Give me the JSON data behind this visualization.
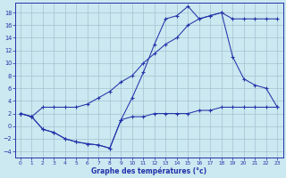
{
  "xlabel": "Graphe des températures (°c)",
  "background_color": "#cce8f0",
  "line_color": "#2233aa",
  "grid_color": "#99bbcc",
  "xlim": [
    -0.5,
    23.5
  ],
  "ylim": [
    -5,
    19.5
  ],
  "xticks": [
    0,
    1,
    2,
    3,
    4,
    5,
    6,
    7,
    8,
    9,
    10,
    11,
    12,
    13,
    14,
    15,
    16,
    17,
    18,
    19,
    20,
    21,
    22,
    23
  ],
  "yticks": [
    -4,
    -2,
    0,
    2,
    4,
    6,
    8,
    10,
    12,
    14,
    16,
    18
  ],
  "line1_x": [
    0,
    1,
    2,
    3,
    4,
    5,
    6,
    7,
    8,
    9,
    10,
    11,
    12,
    13,
    14,
    15,
    16,
    17,
    18,
    19,
    20,
    21,
    22,
    23
  ],
  "line1_y": [
    2,
    1.5,
    -0.5,
    -1.0,
    -2.0,
    -2.5,
    -2.8,
    -3.0,
    -3.5,
    1.0,
    4.5,
    8.5,
    13.0,
    17.0,
    17.5,
    19.0,
    17.0,
    17.5,
    18.0,
    17.0,
    17.0,
    17.0,
    17.0,
    17.0
  ],
  "line2_x": [
    0,
    1,
    2,
    3,
    4,
    5,
    6,
    7,
    8,
    9,
    10,
    11,
    12,
    13,
    14,
    15,
    16,
    17,
    18,
    19,
    20,
    21,
    22,
    23
  ],
  "line2_y": [
    2,
    1.5,
    3.0,
    3.0,
    3.0,
    3.0,
    3.5,
    4.5,
    5.5,
    7.0,
    8.0,
    10.0,
    11.5,
    13.0,
    14.0,
    16.0,
    17.0,
    17.5,
    18.0,
    11.0,
    7.5,
    6.5,
    6.0,
    3.0
  ],
  "line3_x": [
    0,
    1,
    2,
    3,
    4,
    5,
    6,
    7,
    8,
    9,
    10,
    11,
    12,
    13,
    14,
    15,
    16,
    17,
    18,
    19,
    20,
    21,
    22,
    23
  ],
  "line3_y": [
    2,
    1.5,
    -0.5,
    -1.0,
    -2.0,
    -2.5,
    -2.8,
    -3.0,
    -3.5,
    1.0,
    1.5,
    1.5,
    2.0,
    2.0,
    2.0,
    2.0,
    2.5,
    2.5,
    3.0,
    3.0,
    3.0,
    3.0,
    3.0,
    3.0
  ]
}
